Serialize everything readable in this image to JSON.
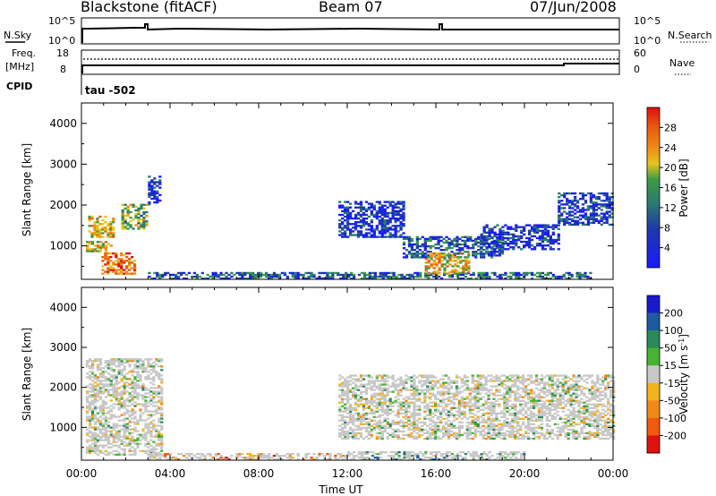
{
  "header": {
    "station": "Blackstone (fitACF)",
    "beam": "Beam 07",
    "date": "07/Jun/2008"
  },
  "aux_panels": {
    "nsky_label": "N.Sky",
    "nsearch_label": "N.Search",
    "nsky_ticks": [
      "10^5",
      "10^0"
    ],
    "nsearch_ticks": [
      "10^5",
      "10^0"
    ],
    "freq_label_1": "Freq.",
    "freq_label_2": "[MHz]",
    "freq_ticks": [
      "18",
      "8"
    ],
    "nave_label": "Nave",
    "nave_ticks": [
      "60",
      "0"
    ],
    "cpid_label": "CPID",
    "cpid_value": "tau -502"
  },
  "colors": {
    "power_scale": [
      "#1a1aff",
      "#1f3aa8",
      "#2a7a70",
      "#3c9c46",
      "#e6c41c",
      "#f08a14",
      "#e85a10",
      "#e01010"
    ],
    "velocity_scale": [
      "#e01010",
      "#f05a10",
      "#f08a14",
      "#f0b41c",
      "#c8c8c8",
      "#46b432",
      "#2a8a5a",
      "#1e5aa0",
      "#1a1acc"
    ]
  },
  "chart_data": [
    {
      "type": "heatmap",
      "name": "power",
      "ylabel": "Slant Range [km]",
      "yticks": [
        "4000",
        "3000",
        "2000",
        "1000"
      ],
      "ylim": [
        180,
        4500
      ],
      "xlim": [
        0,
        24
      ],
      "colorbar_label": "Power [dB]",
      "colorbar_ticks": [
        "28",
        "24",
        "20",
        "16",
        "12",
        "8",
        "4"
      ],
      "colorbar_range": [
        0,
        32
      ],
      "regions": [
        {
          "t0": 0.3,
          "t1": 1.5,
          "r0": 1200,
          "r1": 1700,
          "level": 0.6
        },
        {
          "t0": 0.2,
          "t1": 1.4,
          "r0": 850,
          "r1": 1100,
          "level": 0.55
        },
        {
          "t0": 0.9,
          "t1": 2.4,
          "r0": 300,
          "r1": 800,
          "level": 0.75
        },
        {
          "t0": 1.8,
          "t1": 3.0,
          "r0": 1400,
          "r1": 2000,
          "level": 0.45
        },
        {
          "t0": 3.0,
          "t1": 3.6,
          "r0": 2000,
          "r1": 2700,
          "level": 0.15
        },
        {
          "t0": 3.0,
          "t1": 23.0,
          "r0": 180,
          "r1": 350,
          "level": 0.25
        },
        {
          "t0": 11.6,
          "t1": 14.5,
          "r0": 1200,
          "r1": 2100,
          "level": 0.12
        },
        {
          "t0": 14.5,
          "t1": 19.0,
          "r0": 700,
          "r1": 1200,
          "level": 0.22
        },
        {
          "t0": 15.5,
          "t1": 17.5,
          "r0": 300,
          "r1": 800,
          "level": 0.6
        },
        {
          "t0": 18.0,
          "t1": 21.5,
          "r0": 900,
          "r1": 1500,
          "level": 0.12
        },
        {
          "t0": 21.5,
          "t1": 24.0,
          "r0": 1500,
          "r1": 2300,
          "level": 0.15
        }
      ]
    },
    {
      "type": "heatmap",
      "name": "velocity",
      "ylabel": "Slant Range [km]",
      "yticks": [
        "4000",
        "3000",
        "2000",
        "1000"
      ],
      "ylim": [
        180,
        4500
      ],
      "xlim": [
        0,
        24
      ],
      "xticks": [
        "00:00",
        "04:00",
        "08:00",
        "12:00",
        "16:00",
        "20:00",
        "00:00"
      ],
      "xlabel": "Time UT",
      "colorbar_label": "Velocity [m s^-1]",
      "colorbar_ticks": [
        "200",
        "100",
        "50",
        "15",
        "-15",
        "-50",
        "-100",
        "-200"
      ],
      "colorbar_range": [
        -250,
        250
      ],
      "regions": [
        {
          "t0": 0.2,
          "t1": 3.6,
          "r0": 300,
          "r1": 2700,
          "level": 0.5
        },
        {
          "t0": 3.0,
          "t1": 12.0,
          "r0": 180,
          "r1": 350,
          "level": 0.3
        },
        {
          "t0": 12.0,
          "t1": 20.0,
          "r0": 180,
          "r1": 400,
          "level": 0.65
        },
        {
          "t0": 11.6,
          "t1": 24.0,
          "r0": 700,
          "r1": 2300,
          "level": 0.5
        }
      ]
    }
  ]
}
